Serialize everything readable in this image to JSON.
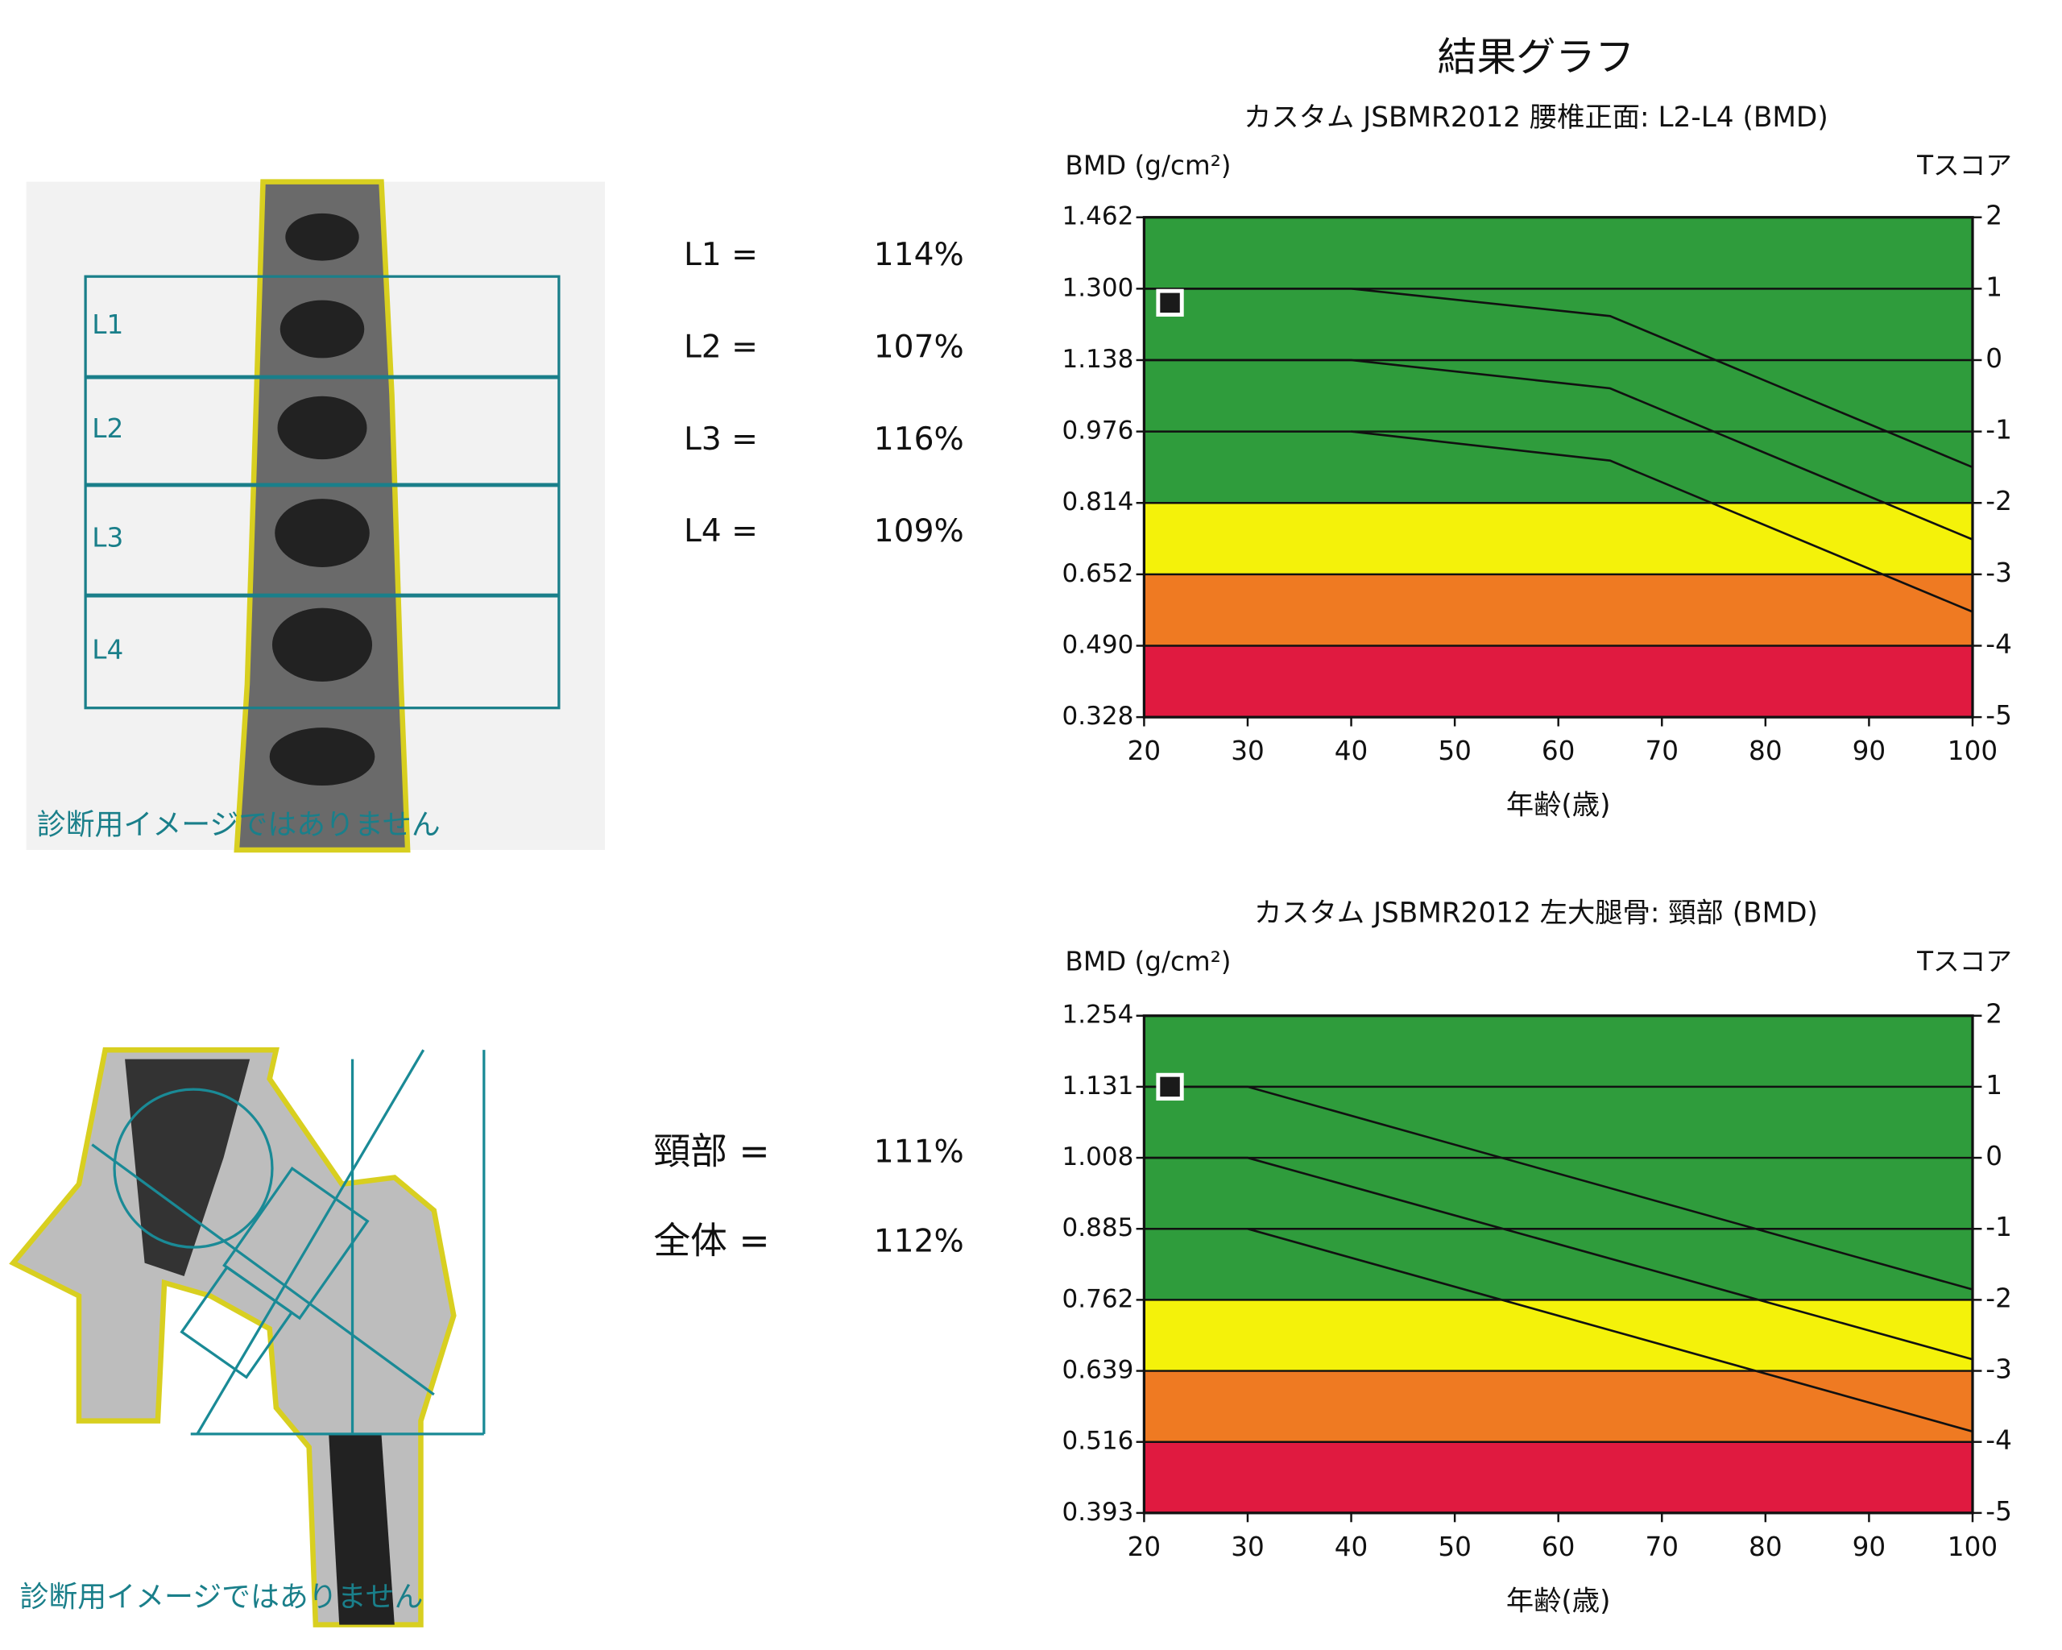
{
  "title": "結果グラフ",
  "spine": {
    "watermark": "診断用イメージではありません",
    "regions": [
      "L1",
      "L2",
      "L3",
      "L4"
    ],
    "results": [
      [
        "L1 =",
        "114%"
      ],
      [
        "L2 =",
        "107%"
      ],
      [
        "L3 =",
        "116%"
      ],
      [
        "L4 =",
        "109%"
      ]
    ]
  },
  "hip": {
    "watermark": "診断用イメージではありません",
    "results": [
      [
        "頸部 =",
        "111%"
      ],
      [
        "全体 =",
        "112%"
      ]
    ]
  },
  "chart_data": [
    {
      "type": "line",
      "title": "カスタム JSBMR2012 腰椎正面: L2-L4 (BMD)",
      "y_label": "BMD (g/cm²)",
      "y2_label": "Tスコア",
      "x_label": "年齢(歳)",
      "xlim": [
        20,
        100
      ],
      "xticks": [
        20,
        30,
        40,
        50,
        60,
        70,
        80,
        90,
        100
      ],
      "ylim": [
        0.328,
        1.462
      ],
      "yticks": [
        0.328,
        {
          "value": 0.49,
          "label": "0.490"
        },
        0.652,
        0.814,
        0.976,
        1.138,
        {
          "value": 1.3,
          "label": "1.300"
        },
        1.462
      ],
      "y2lim": [
        -5,
        2
      ],
      "y2ticks": [
        -5,
        -4,
        -3,
        -2,
        -1,
        0,
        1,
        2
      ],
      "grid": true,
      "bands": [
        {
          "from": 0.328,
          "to": 0.49,
          "color": "#e01a40"
        },
        {
          "from": 0.49,
          "to": 0.652,
          "color": "#ef7a22"
        },
        {
          "from": 0.652,
          "to": 0.814,
          "color": "#f4f20a"
        },
        {
          "from": 0.814,
          "to": 1.462,
          "color": "#2f9c3c"
        }
      ],
      "series": [
        {
          "color": "#111111",
          "x": [
            20,
            40,
            65,
            100
          ],
          "values": [
            1.3,
            1.3,
            1.238,
            0.895
          ]
        },
        {
          "color": "#111111",
          "x": [
            20,
            40,
            65,
            100
          ],
          "values": [
            1.138,
            1.138,
            1.074,
            0.731
          ]
        },
        {
          "color": "#111111",
          "x": [
            40,
            65,
            100
          ],
          "values": [
            0.976,
            0.91,
            0.567
          ]
        }
      ],
      "marker": {
        "x": 22.5,
        "value": 1.268,
        "color": "#1a1a1a"
      }
    },
    {
      "type": "line",
      "title": "カスタム JSBMR2012 左大腿骨: 頸部 (BMD)",
      "y_label": "BMD (g/cm²)",
      "y2_label": "Tスコア",
      "x_label": "年齢(歳)",
      "xlim": [
        20,
        100
      ],
      "xticks": [
        20,
        30,
        40,
        50,
        60,
        70,
        80,
        90,
        100
      ],
      "ylim": [
        0.393,
        1.254
      ],
      "yticks": [
        0.393,
        0.516,
        0.639,
        0.762,
        0.885,
        1.008,
        1.131,
        1.254
      ],
      "y2lim": [
        -5,
        2
      ],
      "y2ticks": [
        -5,
        -4,
        -3,
        -2,
        -1,
        0,
        1,
        2
      ],
      "grid": true,
      "bands": [
        {
          "from": 0.393,
          "to": 0.516,
          "color": "#e01a40"
        },
        {
          "from": 0.516,
          "to": 0.639,
          "color": "#ef7a22"
        },
        {
          "from": 0.639,
          "to": 0.762,
          "color": "#f4f20a"
        },
        {
          "from": 0.762,
          "to": 1.254,
          "color": "#2f9c3c"
        }
      ],
      "series": [
        {
          "color": "#111111",
          "x": [
            20,
            30,
            100
          ],
          "values": [
            1.131,
            1.131,
            0.78
          ]
        },
        {
          "color": "#111111",
          "x": [
            20,
            30,
            100
          ],
          "values": [
            1.008,
            1.008,
            0.659
          ]
        },
        {
          "color": "#111111",
          "x": [
            30,
            100
          ],
          "values": [
            0.885,
            0.534
          ]
        }
      ],
      "marker": {
        "x": 22.5,
        "value": 1.131,
        "color": "#1a1a1a"
      }
    }
  ]
}
